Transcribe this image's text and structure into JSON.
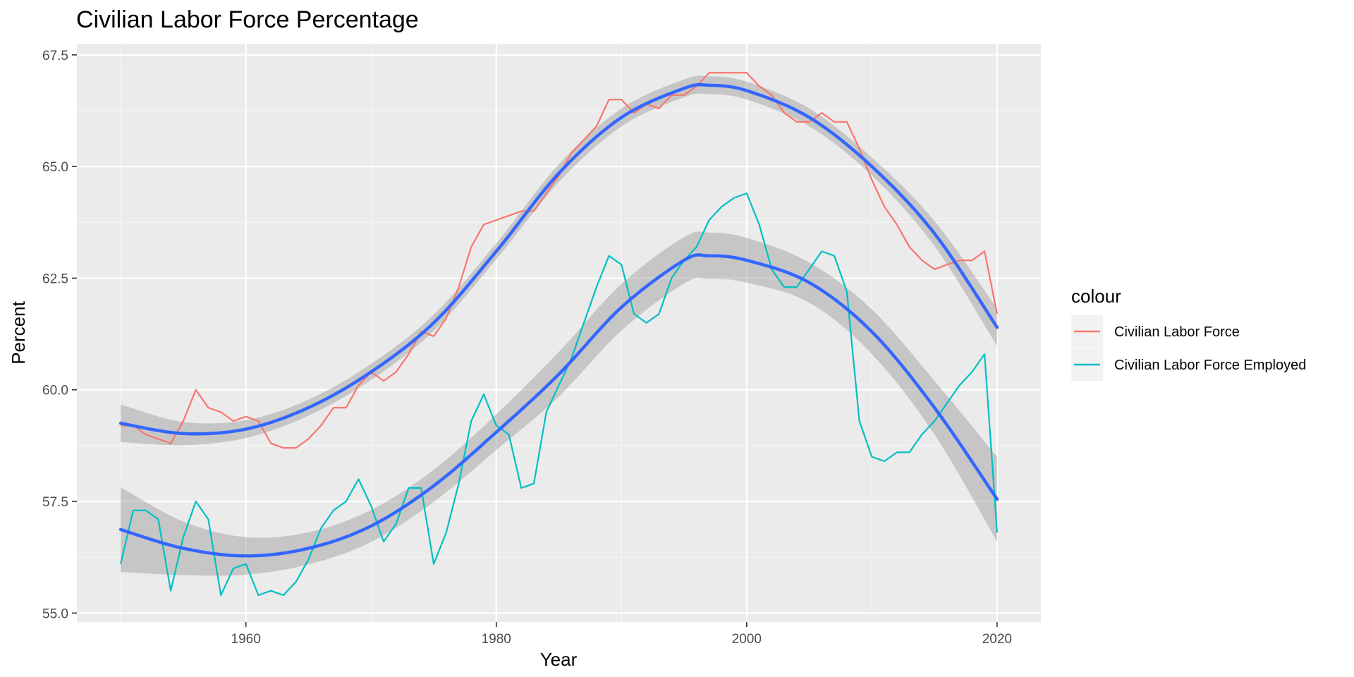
{
  "chart_data": {
    "type": "line",
    "title": "Civilian Labor Force Percentage",
    "xlabel": "Year",
    "ylabel": "Percent",
    "xlim": [
      1946.5,
      2023.5
    ],
    "ylim": [
      54.8,
      67.75
    ],
    "x_ticks": [
      1960,
      1980,
      2000,
      2020
    ],
    "x_tick_labels": [
      "1960",
      "1980",
      "2000",
      "2020"
    ],
    "y_ticks": [
      55.0,
      57.5,
      60.0,
      62.5,
      65.0,
      67.5
    ],
    "y_tick_labels": [
      "55.0",
      "57.5",
      "60.0",
      "62.5",
      "65.0",
      "67.5"
    ],
    "grid": true,
    "legend": {
      "title": "colour",
      "position": "right",
      "entries": [
        "Civilian Labor Force",
        "Civilian Labor Force Employed"
      ]
    },
    "x": [
      1950,
      1951,
      1952,
      1953,
      1954,
      1955,
      1956,
      1957,
      1958,
      1959,
      1960,
      1961,
      1962,
      1963,
      1964,
      1965,
      1966,
      1967,
      1968,
      1969,
      1970,
      1971,
      1972,
      1973,
      1974,
      1975,
      1976,
      1977,
      1978,
      1979,
      1980,
      1981,
      1982,
      1983,
      1984,
      1985,
      1986,
      1987,
      1988,
      1989,
      1990,
      1991,
      1992,
      1993,
      1994,
      1995,
      1996,
      1997,
      1998,
      1999,
      2000,
      2001,
      2002,
      2003,
      2004,
      2005,
      2006,
      2007,
      2008,
      2009,
      2010,
      2011,
      2012,
      2013,
      2014,
      2015,
      2016,
      2017,
      2018,
      2019,
      2020
    ],
    "series": [
      {
        "name": "Civilian Labor Force",
        "color": "#F8766D",
        "values": [
          59.2,
          59.2,
          59.0,
          58.9,
          58.8,
          59.3,
          60.0,
          59.6,
          59.5,
          59.3,
          59.4,
          59.3,
          58.8,
          58.7,
          58.7,
          58.9,
          59.2,
          59.6,
          59.6,
          60.1,
          60.4,
          60.2,
          60.4,
          60.8,
          61.3,
          61.2,
          61.6,
          62.3,
          63.2,
          63.7,
          63.8,
          63.9,
          64.0,
          64.0,
          64.4,
          64.8,
          65.3,
          65.6,
          65.9,
          66.5,
          66.5,
          66.2,
          66.4,
          66.3,
          66.6,
          66.6,
          66.8,
          67.1,
          67.1,
          67.1,
          67.1,
          66.8,
          66.6,
          66.2,
          66.0,
          66.0,
          66.2,
          66.0,
          66.0,
          65.4,
          64.7,
          64.1,
          63.7,
          63.2,
          62.9,
          62.7,
          62.8,
          62.9,
          62.9,
          63.1,
          61.7
        ]
      },
      {
        "name": "Civilian Labor Force Employed",
        "color": "#00BFC4",
        "values": [
          56.1,
          57.3,
          57.3,
          57.1,
          55.5,
          56.7,
          57.5,
          57.1,
          55.4,
          56.0,
          56.1,
          55.4,
          55.5,
          55.4,
          55.7,
          56.2,
          56.9,
          57.3,
          57.5,
          58.0,
          57.4,
          56.6,
          57.0,
          57.8,
          57.8,
          56.1,
          56.8,
          57.9,
          59.3,
          59.9,
          59.2,
          59.0,
          57.8,
          57.9,
          59.5,
          60.1,
          60.7,
          61.5,
          62.3,
          63.0,
          62.8,
          61.7,
          61.5,
          61.7,
          62.5,
          62.9,
          63.2,
          63.8,
          64.1,
          64.3,
          64.4,
          63.7,
          62.7,
          62.3,
          62.3,
          62.7,
          63.1,
          63.0,
          62.2,
          59.3,
          58.5,
          58.4,
          58.6,
          58.6,
          59.0,
          59.3,
          59.7,
          60.1,
          60.4,
          60.8,
          56.8
        ]
      }
    ],
    "smooth": [
      {
        "of": "Civilian Labor Force",
        "color": "#3366FF",
        "x": [
          1950,
          1955,
          1960,
          1965,
          1970,
          1975,
          1980,
          1985,
          1990,
          1995,
          1997,
          2000,
          2005,
          2010,
          2015,
          2020
        ],
        "fit": [
          59.25,
          59.02,
          59.12,
          59.6,
          60.4,
          61.5,
          63.1,
          64.85,
          66.1,
          66.75,
          66.82,
          66.7,
          66.1,
          65.0,
          63.5,
          61.4
        ],
        "ci": [
          0.42,
          0.26,
          0.2,
          0.18,
          0.18,
          0.18,
          0.18,
          0.2,
          0.2,
          0.2,
          0.2,
          0.2,
          0.2,
          0.2,
          0.28,
          0.42
        ]
      },
      {
        "of": "Civilian Labor Force Employed",
        "color": "#3366FF",
        "x": [
          1950,
          1955,
          1960,
          1965,
          1970,
          1975,
          1980,
          1985,
          1990,
          1995,
          1997,
          2000,
          2005,
          2010,
          2015,
          2020
        ],
        "fit": [
          56.87,
          56.45,
          56.28,
          56.45,
          56.95,
          57.85,
          59.05,
          60.35,
          61.85,
          62.9,
          63.0,
          62.9,
          62.4,
          61.3,
          59.6,
          57.55
        ],
        "ci": [
          0.95,
          0.6,
          0.42,
          0.36,
          0.36,
          0.36,
          0.4,
          0.5,
          0.52,
          0.52,
          0.52,
          0.5,
          0.45,
          0.5,
          0.6,
          0.95
        ]
      }
    ]
  }
}
